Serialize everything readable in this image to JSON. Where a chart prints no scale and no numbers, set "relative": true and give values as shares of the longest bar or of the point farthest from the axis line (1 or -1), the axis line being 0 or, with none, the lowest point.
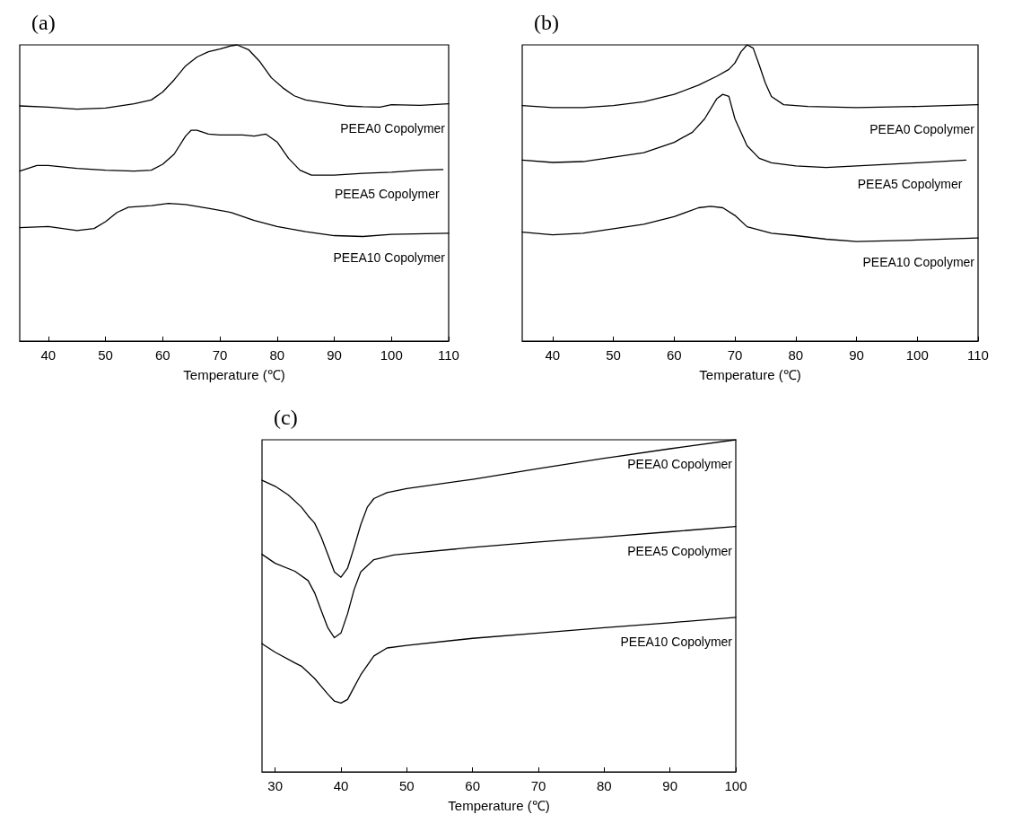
{
  "chart_data": [
    {
      "type": "line",
      "title": "(a)",
      "xlabel": "Temperature (℃)",
      "relative": true,
      "xlim": [
        35,
        110
      ],
      "xticks": [
        40,
        50,
        60,
        70,
        80,
        90,
        100,
        110
      ],
      "grid": false,
      "legend": false,
      "marker": "none",
      "line_style": "solid",
      "series": [
        {
          "name": "PEEA0 Copolymer",
          "color": "#000000",
          "x": [
            35,
            40,
            45,
            50,
            55,
            58,
            60,
            62,
            64,
            66,
            68,
            70,
            72,
            73,
            75,
            77,
            79,
            81,
            83,
            85,
            88,
            92,
            95,
            98,
            100,
            105,
            110
          ],
          "values": [
            0.794,
            0.79,
            0.783,
            0.787,
            0.801,
            0.814,
            0.841,
            0.882,
            0.929,
            0.959,
            0.977,
            0.986,
            0.997,
            1,
            0.984,
            0.943,
            0.889,
            0.855,
            0.828,
            0.814,
            0.805,
            0.794,
            0.791,
            0.79,
            0.798,
            0.796,
            0.801
          ]
        },
        {
          "name": "PEEA5 Copolymer",
          "color": "#000000",
          "x": [
            35,
            38,
            40,
            45,
            50,
            55,
            58,
            60,
            62,
            64,
            65,
            66,
            68,
            70,
            74,
            76,
            78,
            80,
            82,
            84,
            86,
            90,
            95,
            100,
            105,
            109
          ],
          "values": [
            0.574,
            0.593,
            0.593,
            0.583,
            0.577,
            0.574,
            0.577,
            0.597,
            0.631,
            0.692,
            0.712,
            0.712,
            0.699,
            0.696,
            0.696,
            0.692,
            0.699,
            0.672,
            0.617,
            0.577,
            0.56,
            0.56,
            0.566,
            0.57,
            0.577,
            0.579
          ]
        },
        {
          "name": "PEEA10 Copolymer",
          "color": "#000000",
          "x": [
            35,
            40,
            45,
            48,
            50,
            52,
            54,
            58,
            61,
            64,
            68,
            72,
            76,
            80,
            85,
            90,
            95,
            100,
            110
          ],
          "values": [
            0.383,
            0.387,
            0.373,
            0.38,
            0.403,
            0.434,
            0.452,
            0.457,
            0.465,
            0.461,
            0.448,
            0.434,
            0.407,
            0.387,
            0.369,
            0.356,
            0.353,
            0.36,
            0.364
          ]
        }
      ]
    },
    {
      "type": "line",
      "title": "(b)",
      "xlabel": "Temperature (℃)",
      "relative": true,
      "xlim": [
        35,
        110
      ],
      "xticks": [
        40,
        50,
        60,
        70,
        80,
        90,
        100,
        110
      ],
      "grid": false,
      "legend": false,
      "marker": "none",
      "line_style": "solid",
      "series": [
        {
          "name": "PEEA0 Copolymer",
          "color": "#000000",
          "x": [
            35,
            40,
            45,
            50,
            55,
            60,
            64,
            67,
            69,
            70,
            71,
            72,
            73,
            74,
            75,
            76,
            78,
            82,
            90,
            100,
            110
          ],
          "values": [
            0.795,
            0.788,
            0.788,
            0.795,
            0.808,
            0.833,
            0.864,
            0.894,
            0.917,
            0.939,
            0.977,
            1,
            0.989,
            0.932,
            0.871,
            0.826,
            0.798,
            0.792,
            0.788,
            0.792,
            0.798
          ]
        },
        {
          "name": "PEEA5 Copolymer",
          "color": "#000000",
          "x": [
            35,
            40,
            45,
            50,
            55,
            60,
            63,
            65,
            67,
            68,
            69,
            70,
            72,
            74,
            76,
            80,
            85,
            90,
            100,
            108
          ],
          "values": [
            0.611,
            0.603,
            0.606,
            0.621,
            0.636,
            0.671,
            0.705,
            0.75,
            0.818,
            0.833,
            0.826,
            0.75,
            0.659,
            0.617,
            0.602,
            0.591,
            0.586,
            0.591,
            0.602,
            0.611
          ]
        },
        {
          "name": "PEEA10 Copolymer",
          "color": "#000000",
          "x": [
            35,
            40,
            45,
            50,
            55,
            60,
            64,
            66,
            68,
            70,
            72,
            76,
            80,
            85,
            90,
            100,
            110
          ],
          "values": [
            0.368,
            0.359,
            0.364,
            0.379,
            0.394,
            0.42,
            0.45,
            0.455,
            0.45,
            0.424,
            0.386,
            0.364,
            0.356,
            0.344,
            0.336,
            0.341,
            0.348
          ]
        }
      ]
    },
    {
      "type": "line",
      "title": "(c)",
      "xlabel": "Temperature (℃)",
      "relative": true,
      "xlim": [
        28,
        100
      ],
      "xticks": [
        30,
        40,
        50,
        60,
        70,
        80,
        90,
        100
      ],
      "grid": false,
      "legend": false,
      "marker": "none",
      "line_style": "solid",
      "series": [
        {
          "name": "PEEA0 Copolymer",
          "color": "#000000",
          "x": [
            28,
            30,
            32,
            34,
            35,
            36,
            37,
            38,
            39,
            40,
            41,
            42,
            43,
            44,
            45,
            47,
            50,
            60,
            70,
            80,
            90,
            100
          ],
          "values": [
            0.878,
            0.86,
            0.834,
            0.797,
            0.771,
            0.749,
            0.707,
            0.655,
            0.602,
            0.586,
            0.613,
            0.676,
            0.744,
            0.797,
            0.823,
            0.841,
            0.853,
            0.881,
            0.913,
            0.944,
            0.973,
            1
          ]
        },
        {
          "name": "PEEA5 Copolymer",
          "color": "#000000",
          "x": [
            28,
            30,
            33,
            35,
            36,
            37,
            38,
            39,
            40,
            41,
            42,
            43,
            45,
            48,
            50,
            60,
            70,
            80,
            90,
            100
          ],
          "values": [
            0.655,
            0.628,
            0.604,
            0.576,
            0.539,
            0.486,
            0.434,
            0.404,
            0.418,
            0.476,
            0.549,
            0.602,
            0.639,
            0.653,
            0.657,
            0.676,
            0.692,
            0.707,
            0.723,
            0.739
          ]
        },
        {
          "name": "PEEA10 Copolymer",
          "color": "#000000",
          "x": [
            28,
            30,
            33,
            34,
            36,
            38,
            39,
            40,
            41,
            42,
            43,
            45,
            47,
            50,
            60,
            70,
            80,
            90,
            100
          ],
          "values": [
            0.386,
            0.36,
            0.328,
            0.318,
            0.281,
            0.234,
            0.213,
            0.207,
            0.218,
            0.255,
            0.292,
            0.349,
            0.373,
            0.381,
            0.402,
            0.418,
            0.434,
            0.449,
            0.465
          ]
        }
      ]
    }
  ]
}
